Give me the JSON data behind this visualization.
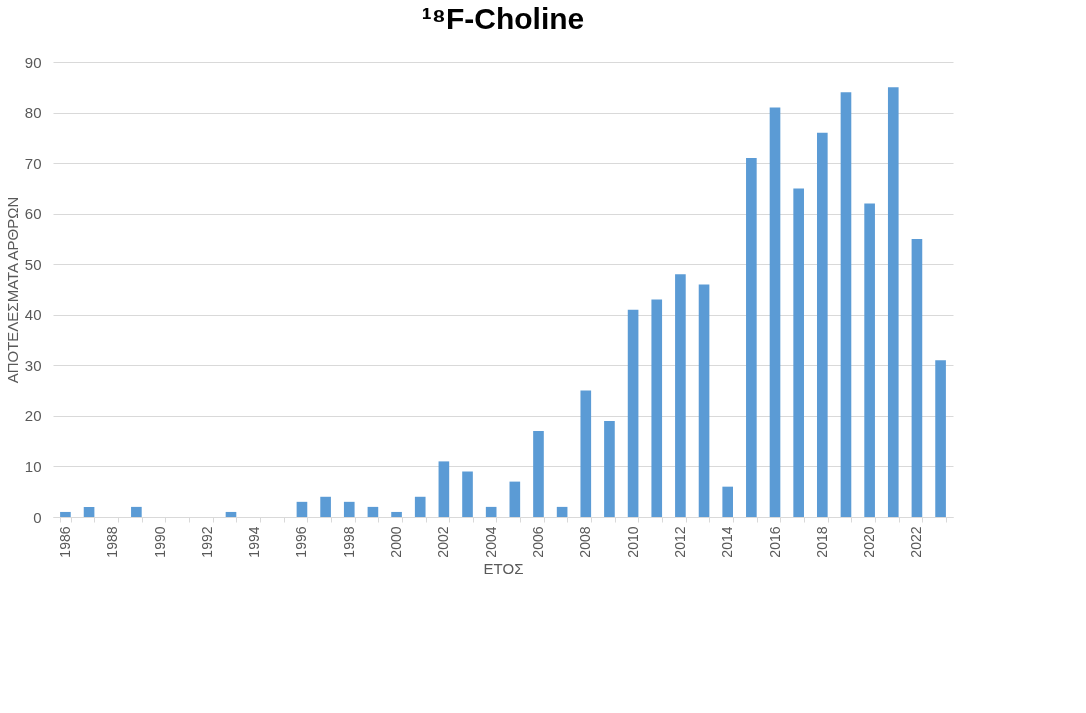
{
  "chart_data": {
    "type": "bar",
    "title": "¹⁸F-Choline",
    "xlabel": "ΕΤΟΣ",
    "ylabel": "ΑΠΟΤΕΛΕΣΜΑΤΑ ΑΡΘΡΩΝ",
    "categories": [
      "1986",
      null,
      "1988",
      null,
      "1990",
      null,
      "1992",
      null,
      "1994",
      null,
      "1996",
      null,
      "1998",
      null,
      "2000",
      null,
      "2002",
      null,
      "2004",
      null,
      "2006",
      null,
      "2008",
      null,
      "2010",
      null,
      "2012",
      null,
      "2014",
      null,
      "2016",
      null,
      "2018",
      null,
      "2020",
      null,
      "2022",
      null
    ],
    "values": [
      1,
      2,
      0,
      2,
      0,
      0,
      0,
      1,
      0,
      0,
      3,
      4,
      3,
      2,
      1,
      4,
      11,
      9,
      2,
      7,
      17,
      2,
      25,
      19,
      41,
      43,
      48,
      46,
      6,
      71,
      81,
      65,
      76,
      84,
      62,
      85,
      55,
      31
    ],
    "color": "#5b9bd5",
    "ylim": [
      0,
      90
    ],
    "yticks": [
      0,
      10,
      20,
      30,
      40,
      50,
      60,
      70,
      80,
      90
    ],
    "grid": "y"
  }
}
